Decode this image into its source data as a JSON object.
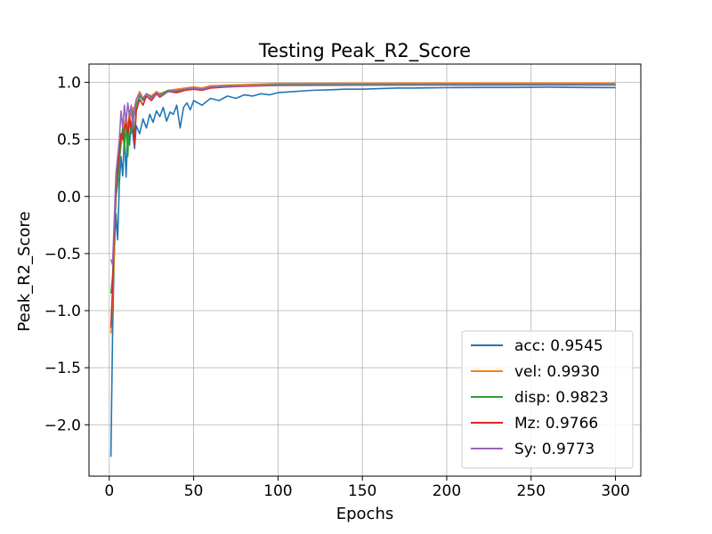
{
  "chart_data": {
    "type": "line",
    "title": "Testing Peak_R2_Score",
    "xlabel": "Epochs",
    "ylabel": "Peak_R2_Score",
    "xlim": [
      -12,
      315
    ],
    "ylim": [
      -2.45,
      1.16
    ],
    "xticks": [
      0,
      50,
      100,
      150,
      200,
      250,
      300
    ],
    "yticks": [
      -2.0,
      -1.5,
      -1.0,
      -0.5,
      0.0,
      0.5,
      1.0
    ],
    "ytick_labels": [
      "−2.0",
      "−1.5",
      "−1.0",
      "−0.5",
      "0.0",
      "0.5",
      "1.0"
    ],
    "grid": true,
    "legend_position": "lower-right",
    "series": [
      {
        "name": "acc: 0.9545",
        "color": "#1f77b4",
        "points": [
          [
            1,
            -2.28
          ],
          [
            2,
            -1.2
          ],
          [
            3,
            -0.5
          ],
          [
            4,
            -0.15
          ],
          [
            5,
            -0.38
          ],
          [
            6,
            0.12
          ],
          [
            7,
            0.35
          ],
          [
            8,
            0.18
          ],
          [
            9,
            0.55
          ],
          [
            10,
            0.17
          ],
          [
            11,
            0.6
          ],
          [
            12,
            0.45
          ],
          [
            13,
            0.65
          ],
          [
            14,
            0.55
          ],
          [
            15,
            0.42
          ],
          [
            16,
            0.62
          ],
          [
            18,
            0.55
          ],
          [
            20,
            0.68
          ],
          [
            22,
            0.6
          ],
          [
            24,
            0.72
          ],
          [
            26,
            0.65
          ],
          [
            28,
            0.75
          ],
          [
            30,
            0.7
          ],
          [
            32,
            0.78
          ],
          [
            34,
            0.66
          ],
          [
            36,
            0.74
          ],
          [
            38,
            0.72
          ],
          [
            40,
            0.8
          ],
          [
            42,
            0.6
          ],
          [
            44,
            0.78
          ],
          [
            46,
            0.82
          ],
          [
            48,
            0.76
          ],
          [
            50,
            0.84
          ],
          [
            55,
            0.8
          ],
          [
            60,
            0.86
          ],
          [
            65,
            0.84
          ],
          [
            70,
            0.88
          ],
          [
            75,
            0.86
          ],
          [
            80,
            0.89
          ],
          [
            85,
            0.88
          ],
          [
            90,
            0.9
          ],
          [
            95,
            0.89
          ],
          [
            100,
            0.91
          ],
          [
            110,
            0.92
          ],
          [
            120,
            0.93
          ],
          [
            130,
            0.935
          ],
          [
            140,
            0.94
          ],
          [
            150,
            0.94
          ],
          [
            160,
            0.945
          ],
          [
            170,
            0.95
          ],
          [
            180,
            0.95
          ],
          [
            190,
            0.952
          ],
          [
            200,
            0.953
          ],
          [
            220,
            0.955
          ],
          [
            240,
            0.955
          ],
          [
            260,
            0.957
          ],
          [
            280,
            0.955
          ],
          [
            300,
            0.9545
          ]
        ]
      },
      {
        "name": "vel: 0.9930",
        "color": "#ff7f0e",
        "points": [
          [
            1,
            -1.2
          ],
          [
            2,
            -0.9
          ],
          [
            3,
            -0.5
          ],
          [
            4,
            0.05
          ],
          [
            5,
            0.2
          ],
          [
            6,
            0.3
          ],
          [
            7,
            0.45
          ],
          [
            8,
            0.55
          ],
          [
            9,
            0.65
          ],
          [
            10,
            0.7
          ],
          [
            11,
            0.6
          ],
          [
            12,
            0.75
          ],
          [
            13,
            0.7
          ],
          [
            14,
            0.78
          ],
          [
            15,
            0.72
          ],
          [
            16,
            0.85
          ],
          [
            18,
            0.92
          ],
          [
            20,
            0.86
          ],
          [
            22,
            0.9
          ],
          [
            25,
            0.88
          ],
          [
            28,
            0.92
          ],
          [
            30,
            0.9
          ],
          [
            35,
            0.93
          ],
          [
            40,
            0.94
          ],
          [
            45,
            0.95
          ],
          [
            50,
            0.96
          ],
          [
            55,
            0.95
          ],
          [
            60,
            0.97
          ],
          [
            70,
            0.975
          ],
          [
            80,
            0.98
          ],
          [
            90,
            0.985
          ],
          [
            100,
            0.99
          ],
          [
            120,
            0.99
          ],
          [
            150,
            0.992
          ],
          [
            200,
            0.993
          ],
          [
            250,
            0.993
          ],
          [
            300,
            0.993
          ]
        ]
      },
      {
        "name": "disp: 0.9823",
        "color": "#2ca02c",
        "points": [
          [
            1,
            -0.85
          ],
          [
            2,
            -0.7
          ],
          [
            3,
            -0.4
          ],
          [
            4,
            0.0
          ],
          [
            5,
            0.1
          ],
          [
            6,
            0.3
          ],
          [
            7,
            0.5
          ],
          [
            8,
            0.6
          ],
          [
            9,
            0.4
          ],
          [
            10,
            0.65
          ],
          [
            11,
            0.35
          ],
          [
            12,
            0.7
          ],
          [
            13,
            0.55
          ],
          [
            14,
            0.75
          ],
          [
            15,
            0.5
          ],
          [
            16,
            0.8
          ],
          [
            18,
            0.88
          ],
          [
            20,
            0.84
          ],
          [
            22,
            0.9
          ],
          [
            25,
            0.87
          ],
          [
            28,
            0.91
          ],
          [
            30,
            0.89
          ],
          [
            35,
            0.93
          ],
          [
            40,
            0.92
          ],
          [
            45,
            0.94
          ],
          [
            50,
            0.95
          ],
          [
            55,
            0.94
          ],
          [
            60,
            0.96
          ],
          [
            70,
            0.97
          ],
          [
            80,
            0.97
          ],
          [
            90,
            0.975
          ],
          [
            100,
            0.98
          ],
          [
            150,
            0.982
          ],
          [
            200,
            0.982
          ],
          [
            250,
            0.982
          ],
          [
            300,
            0.9823
          ]
        ]
      },
      {
        "name": "Mz: 0.9766",
        "color": "#d62728",
        "points": [
          [
            1,
            -1.15
          ],
          [
            2,
            -0.8
          ],
          [
            3,
            -0.3
          ],
          [
            4,
            0.1
          ],
          [
            5,
            0.25
          ],
          [
            6,
            0.4
          ],
          [
            7,
            0.55
          ],
          [
            8,
            0.5
          ],
          [
            9,
            0.6
          ],
          [
            10,
            0.65
          ],
          [
            11,
            0.55
          ],
          [
            12,
            0.7
          ],
          [
            13,
            0.6
          ],
          [
            14,
            0.65
          ],
          [
            15,
            0.45
          ],
          [
            16,
            0.75
          ],
          [
            18,
            0.85
          ],
          [
            20,
            0.8
          ],
          [
            22,
            0.88
          ],
          [
            25,
            0.84
          ],
          [
            28,
            0.9
          ],
          [
            30,
            0.87
          ],
          [
            35,
            0.92
          ],
          [
            40,
            0.91
          ],
          [
            45,
            0.93
          ],
          [
            50,
            0.94
          ],
          [
            55,
            0.93
          ],
          [
            60,
            0.95
          ],
          [
            70,
            0.96
          ],
          [
            80,
            0.965
          ],
          [
            90,
            0.97
          ],
          [
            100,
            0.972
          ],
          [
            150,
            0.975
          ],
          [
            200,
            0.976
          ],
          [
            250,
            0.976
          ],
          [
            300,
            0.9766
          ]
        ]
      },
      {
        "name": "Sy: 0.9773",
        "color": "#9467bd",
        "points": [
          [
            1,
            -0.55
          ],
          [
            2,
            -0.6
          ],
          [
            3,
            -0.2
          ],
          [
            4,
            0.2
          ],
          [
            5,
            0.35
          ],
          [
            6,
            0.5
          ],
          [
            7,
            0.75
          ],
          [
            8,
            0.6
          ],
          [
            9,
            0.8
          ],
          [
            10,
            0.65
          ],
          [
            11,
            0.82
          ],
          [
            12,
            0.7
          ],
          [
            13,
            0.8
          ],
          [
            14,
            0.6
          ],
          [
            15,
            0.78
          ],
          [
            16,
            0.85
          ],
          [
            18,
            0.9
          ],
          [
            20,
            0.86
          ],
          [
            22,
            0.9
          ],
          [
            25,
            0.86
          ],
          [
            28,
            0.91
          ],
          [
            30,
            0.88
          ],
          [
            35,
            0.92
          ],
          [
            40,
            0.93
          ],
          [
            45,
            0.94
          ],
          [
            50,
            0.95
          ],
          [
            55,
            0.94
          ],
          [
            60,
            0.96
          ],
          [
            70,
            0.965
          ],
          [
            80,
            0.97
          ],
          [
            90,
            0.972
          ],
          [
            100,
            0.975
          ],
          [
            150,
            0.977
          ],
          [
            200,
            0.977
          ],
          [
            250,
            0.977
          ],
          [
            300,
            0.9773
          ]
        ]
      }
    ]
  }
}
